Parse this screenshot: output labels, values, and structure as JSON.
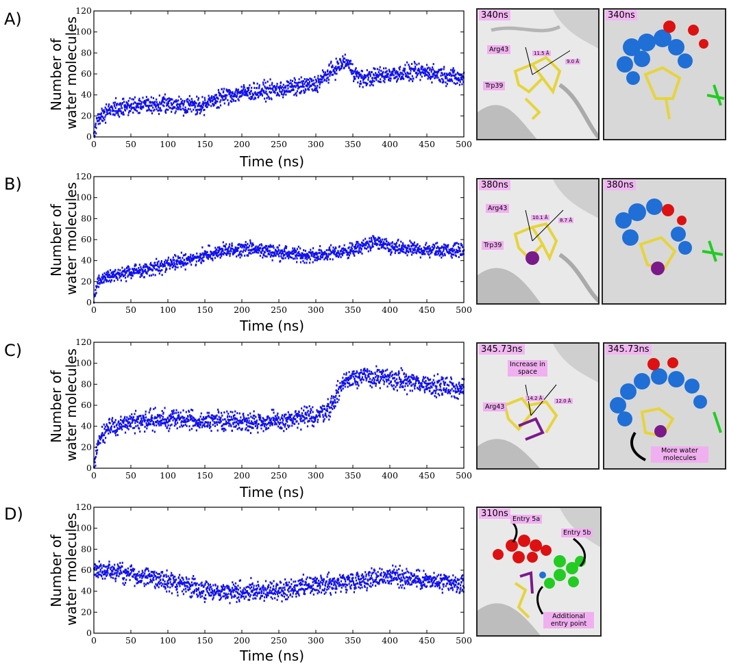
{
  "figure": {
    "panels": [
      {
        "letter": "A)",
        "ylabel": [
          "Number of",
          "water molecules"
        ],
        "xlabel": "Time (ns)",
        "snapshots": [
          {
            "time": "340ns",
            "labels": {
              "res1": "Arg43",
              "res2": "Trp39",
              "d1": "11.5 Å",
              "d2": "9.0 Å"
            }
          },
          {
            "time": "340ns"
          }
        ]
      },
      {
        "letter": "B)",
        "ylabel": [
          "Number of",
          "water molecules"
        ],
        "xlabel": "Time (ns)",
        "snapshots": [
          {
            "time": "380ns",
            "labels": {
              "res1": "Arg43",
              "res2": "Trp39",
              "d1": "10.1 Å",
              "d2": "8.7 Å"
            }
          },
          {
            "time": "380ns"
          }
        ]
      },
      {
        "letter": "C)",
        "ylabel": [
          "Number of",
          "water molecules"
        ],
        "xlabel": "Time (ns)",
        "snapshots": [
          {
            "time": "345.73ns",
            "labels": {
              "res1": "Arg43",
              "note": "Increase in space",
              "d1": "14.2 Å",
              "d2": "12.0 Å"
            }
          },
          {
            "time": "345.73ns",
            "labels": {
              "note": "More water molecules"
            }
          }
        ]
      },
      {
        "letter": "D)",
        "ylabel": [
          "Number of",
          "water molecules"
        ],
        "xlabel": "Time (ns)",
        "snapshots": [
          {
            "time": "310ns",
            "labels": {
              "entry1": "Entry 5a",
              "entry2": "Entry 5b",
              "note": "Additional entry point"
            }
          }
        ]
      }
    ],
    "colors": {
      "series": "#1010ee",
      "yellow": "#e6d43a",
      "red": "#dd1111",
      "blue": "#1f6fd6",
      "green": "#22cc22",
      "purple": "#7a1a8a",
      "label_bg": "#f0b0f0"
    }
  },
  "chart_data": [
    {
      "type": "scatter",
      "panel": "A",
      "xlabel": "Time (ns)",
      "ylabel": "Number of water molecules",
      "xlim": [
        0,
        500
      ],
      "ylim": [
        0,
        120
      ],
      "xticks": [
        0,
        50,
        100,
        150,
        200,
        250,
        300,
        350,
        400,
        450,
        500
      ],
      "yticks": [
        0,
        20,
        40,
        60,
        80,
        100,
        120
      ],
      "trend": {
        "x": [
          0,
          5,
          15,
          30,
          60,
          100,
          150,
          170,
          200,
          250,
          300,
          320,
          340,
          360,
          400,
          450,
          500
        ],
        "y": [
          0,
          18,
          24,
          27,
          30,
          31,
          30,
          38,
          42,
          45,
          50,
          62,
          72,
          55,
          60,
          62,
          55
        ]
      },
      "spread": 6
    },
    {
      "type": "scatter",
      "panel": "B",
      "xlabel": "Time (ns)",
      "ylabel": "Number of water molecules",
      "xlim": [
        0,
        500
      ],
      "ylim": [
        0,
        120
      ],
      "xticks": [
        0,
        50,
        100,
        150,
        200,
        250,
        300,
        350,
        400,
        450,
        500
      ],
      "yticks": [
        0,
        20,
        40,
        60,
        80,
        100,
        120
      ],
      "trend": {
        "x": [
          0,
          5,
          20,
          60,
          100,
          150,
          200,
          250,
          280,
          300,
          350,
          380,
          400,
          450,
          500
        ],
        "y": [
          0,
          20,
          25,
          30,
          36,
          45,
          52,
          48,
          45,
          45,
          50,
          58,
          52,
          50,
          50
        ]
      },
      "spread": 5
    },
    {
      "type": "scatter",
      "panel": "C",
      "xlabel": "Time (ns)",
      "ylabel": "Number of water molecules",
      "xlim": [
        0,
        500
      ],
      "ylim": [
        0,
        120
      ],
      "xticks": [
        0,
        50,
        100,
        150,
        200,
        250,
        300,
        350,
        400,
        450,
        500
      ],
      "yticks": [
        0,
        20,
        40,
        60,
        80,
        100,
        120
      ],
      "trend": {
        "x": [
          0,
          5,
          20,
          50,
          100,
          150,
          200,
          250,
          300,
          320,
          335,
          350,
          400,
          450,
          500
        ],
        "y": [
          0,
          25,
          38,
          44,
          47,
          45,
          45,
          44,
          50,
          58,
          80,
          88,
          85,
          80,
          75
        ]
      },
      "spread": 7
    },
    {
      "type": "scatter",
      "panel": "D",
      "xlabel": "Time (ns)",
      "ylabel": "Number of water molecules",
      "xlim": [
        0,
        500
      ],
      "ylim": [
        0,
        120
      ],
      "xticks": [
        0,
        50,
        100,
        150,
        200,
        250,
        300,
        350,
        400,
        450,
        500
      ],
      "yticks": [
        0,
        20,
        40,
        60,
        80,
        100,
        120
      ],
      "trend": {
        "x": [
          0,
          20,
          60,
          100,
          150,
          200,
          250,
          300,
          350,
          400,
          450,
          500
        ],
        "y": [
          62,
          60,
          55,
          50,
          40,
          40,
          40,
          45,
          50,
          55,
          50,
          45
        ]
      },
      "spread": 7
    }
  ]
}
